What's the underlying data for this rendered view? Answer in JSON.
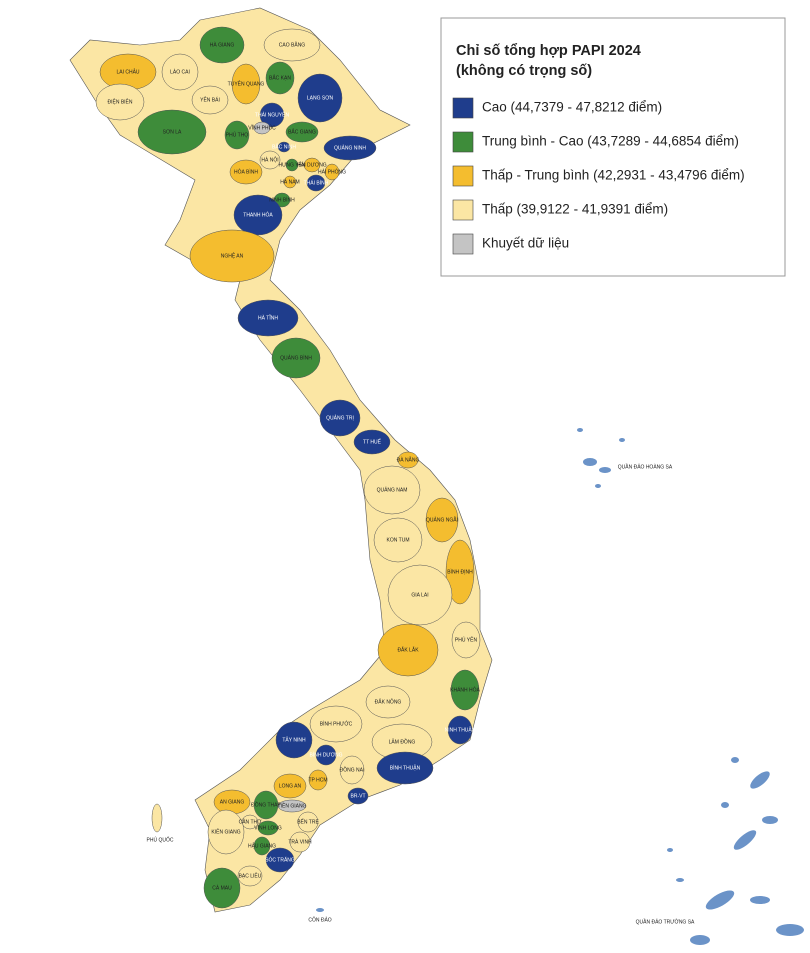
{
  "legend": {
    "title": "Chỉ số tổng hợp PAPI 2024",
    "subtitle": "(không có trọng số)",
    "items": [
      {
        "label": "Cao (44,7379 - 47,8212 điểm)",
        "color": "#1f3d8c"
      },
      {
        "label": "Trung bình - Cao (43,7289 - 44,6854 điểm)",
        "color": "#3e8c3a"
      },
      {
        "label": "Thấp - Trung bình (42,2931 - 43,4796 điểm)",
        "color": "#f4bd2f"
      },
      {
        "label": "Thấp (39,9122 - 41,9391 điểm)",
        "color": "#fbe6a4"
      },
      {
        "label": "Khuyết dữ liệu",
        "color": "#c4c4c4"
      }
    ]
  },
  "provinces": [
    {
      "name": "HÀ GIANG",
      "level": 1
    },
    {
      "name": "CAO BẰNG",
      "level": 3
    },
    {
      "name": "LAI CHÂU",
      "level": 2
    },
    {
      "name": "LÀO CAI",
      "level": 3
    },
    {
      "name": "ĐIỆN BIÊN",
      "level": 3
    },
    {
      "name": "YÊN BÁI",
      "level": 3
    },
    {
      "name": "TUYÊN QUANG",
      "level": 2
    },
    {
      "name": "BẮC KẠN",
      "level": 1
    },
    {
      "name": "LẠNG SƠN",
      "level": 0
    },
    {
      "name": "THÁI NGUYÊN",
      "level": 0
    },
    {
      "name": "SƠN LA",
      "level": 1
    },
    {
      "name": "PHÚ THỌ",
      "level": 1
    },
    {
      "name": "VĨNH PHÚC",
      "level": 4
    },
    {
      "name": "BẮC GIANG",
      "level": 1
    },
    {
      "name": "QUẢNG NINH",
      "level": 0
    },
    {
      "name": "BẮC NINH",
      "level": 0
    },
    {
      "name": "HÀ NỘI",
      "level": 3
    },
    {
      "name": "HẢI DƯƠNG",
      "level": 2
    },
    {
      "name": "HẢI PHÒNG",
      "level": 2
    },
    {
      "name": "HÒA BÌNH",
      "level": 2
    },
    {
      "name": "HƯNG YÊN",
      "level": 1
    },
    {
      "name": "HÀ NAM",
      "level": 2
    },
    {
      "name": "THÁI BÌNH",
      "level": 0
    },
    {
      "name": "NINH BÌNH",
      "level": 1
    },
    {
      "name": "THANH HÓA",
      "level": 0
    },
    {
      "name": "NGHỆ AN",
      "level": 2
    },
    {
      "name": "HÀ TĨNH",
      "level": 0
    },
    {
      "name": "QUẢNG BÌNH",
      "level": 1
    },
    {
      "name": "QUẢNG TRỊ",
      "level": 0
    },
    {
      "name": "TT HUẾ",
      "level": 0
    },
    {
      "name": "ĐÀ NẴNG",
      "level": 2
    },
    {
      "name": "QUẢNG NAM",
      "level": 3
    },
    {
      "name": "QUẢNG NGÃI",
      "level": 2
    },
    {
      "name": "KON TUM",
      "level": 3
    },
    {
      "name": "BÌNH ĐỊNH",
      "level": 2
    },
    {
      "name": "GIA LAI",
      "level": 3
    },
    {
      "name": "PHÚ YÊN",
      "level": 3
    },
    {
      "name": "ĐẮK LẮK",
      "level": 2
    },
    {
      "name": "KHÁNH HÒA",
      "level": 1
    },
    {
      "name": "ĐẮK NÔNG",
      "level": 3
    },
    {
      "name": "BÌNH PHƯỚC",
      "level": 3
    },
    {
      "name": "LÂM ĐỒNG",
      "level": 3
    },
    {
      "name": "NINH THUẬN",
      "level": 0
    },
    {
      "name": "TÂY NINH",
      "level": 0
    },
    {
      "name": "BÌNH DƯƠNG",
      "level": 0
    },
    {
      "name": "ĐỒNG NAI",
      "level": 3
    },
    {
      "name": "BÌNH THUẬN",
      "level": 0
    },
    {
      "name": "TP HCM",
      "level": 2
    },
    {
      "name": "BR-VT",
      "level": 0
    },
    {
      "name": "LONG AN",
      "level": 2
    },
    {
      "name": "AN GIANG",
      "level": 2
    },
    {
      "name": "ĐỒNG THÁP",
      "level": 1
    },
    {
      "name": "TIỀN GIANG",
      "level": 4
    },
    {
      "name": "BẾN TRE",
      "level": 3
    },
    {
      "name": "VĨNH LONG",
      "level": 1
    },
    {
      "name": "CẦN THƠ",
      "level": 3
    },
    {
      "name": "KIÊN GIANG",
      "level": 3
    },
    {
      "name": "HẬU GIANG",
      "level": 1
    },
    {
      "name": "TRÀ VINH",
      "level": 3
    },
    {
      "name": "SÓC TRĂNG",
      "level": 0
    },
    {
      "name": "BẠC LIÊU",
      "level": 3
    },
    {
      "name": "CÀ MAU",
      "level": 1
    }
  ],
  "places": [
    "PHÚ QUỐC",
    "CÔN ĐẢO",
    "QUẦN ĐẢO HOÀNG SA",
    "QUẦN ĐẢO TRƯỜNG SA"
  ]
}
